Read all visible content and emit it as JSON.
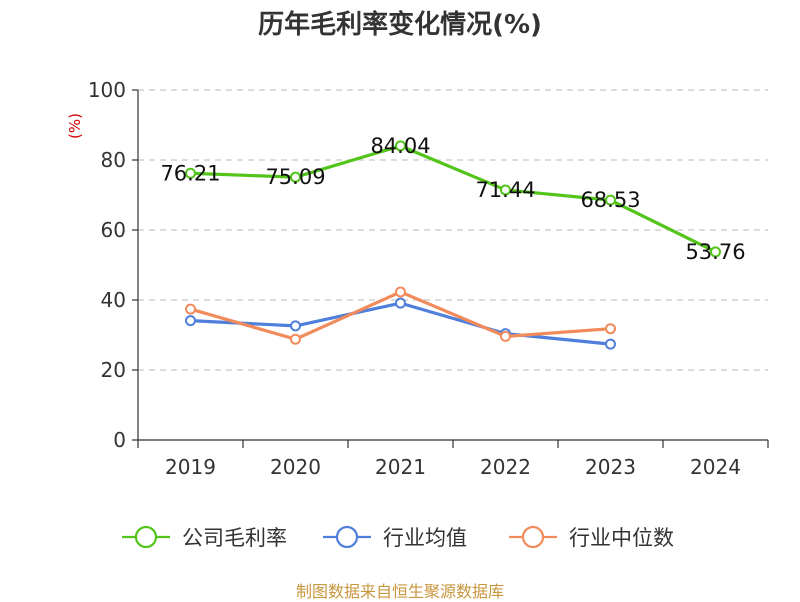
{
  "chart_data": {
    "type": "line",
    "title": "历年毛利率变化情况(%)",
    "ylabel": "(%)",
    "xlabel": "",
    "categories": [
      "2019",
      "2020",
      "2021",
      "2022",
      "2023",
      "2024"
    ],
    "ylim": [
      0,
      100
    ],
    "yticks": [
      0,
      20,
      40,
      60,
      80,
      100
    ],
    "grid": "horizontal dashed",
    "legend": "bottom",
    "series": [
      {
        "name": "公司毛利率",
        "color": "#52c41a",
        "values": [
          76.21,
          75.09,
          84.04,
          71.44,
          68.53,
          53.76
        ],
        "labels": [
          "76.21",
          "75.09",
          "84.04",
          "71.44",
          "68.53",
          "53.76"
        ]
      },
      {
        "name": "行业均值",
        "color": "#4f7fdb",
        "values": [
          34.1,
          32.6,
          39.1,
          30.4,
          27.4,
          null
        ]
      },
      {
        "name": "行业中位数",
        "color": "#f28b5c",
        "values": [
          37.4,
          28.8,
          42.3,
          29.6,
          31.8,
          null
        ]
      }
    ]
  },
  "source": "制图数据来自恒生聚源数据库"
}
